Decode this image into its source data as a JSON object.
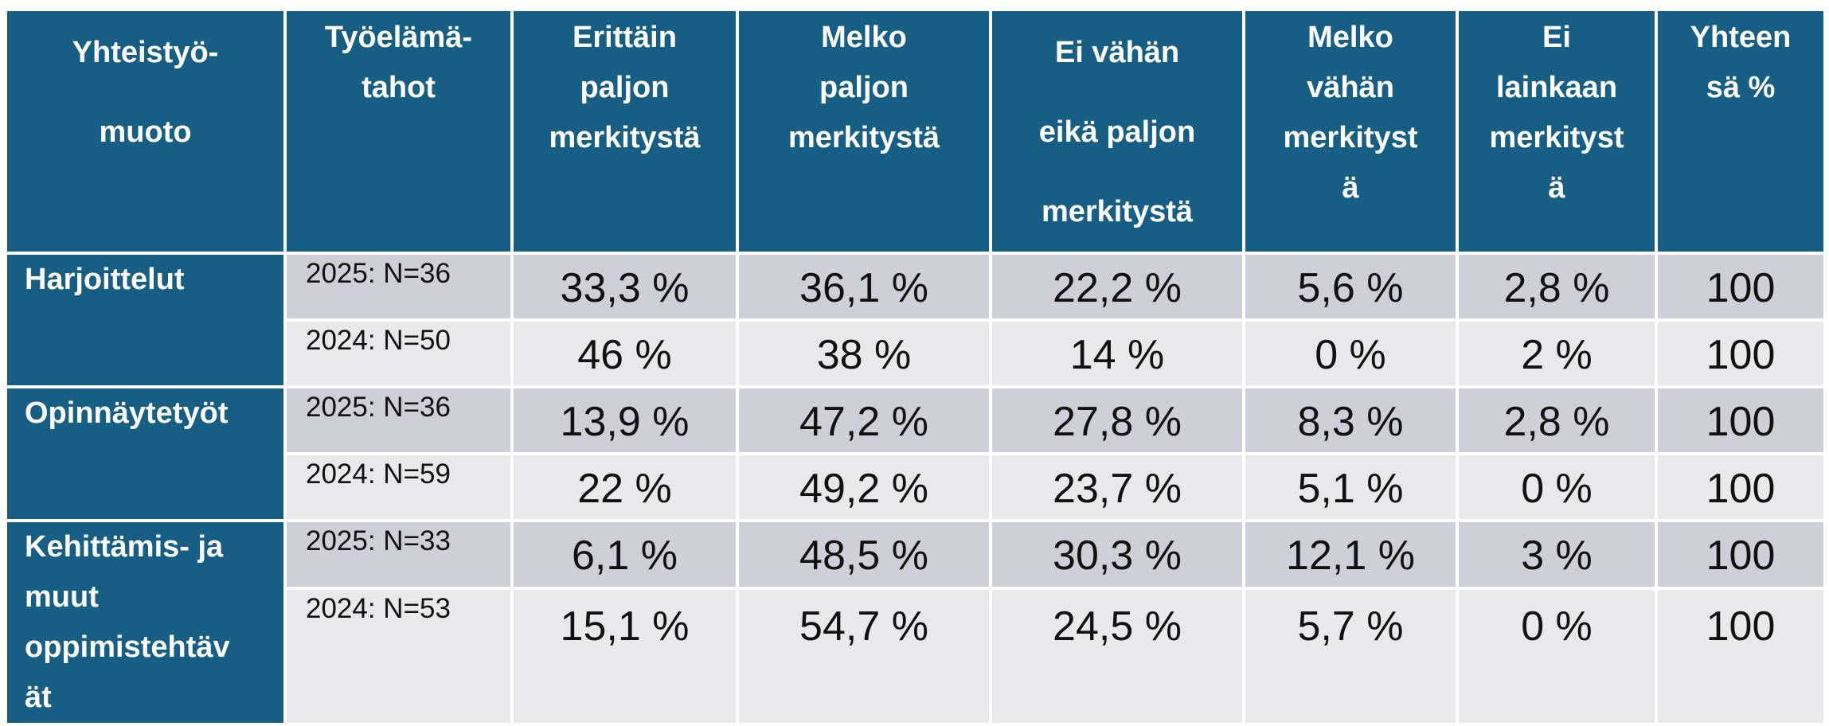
{
  "columns": [
    "Yhteistyö-\nmuoto",
    "Työelämä-\ntahot",
    "Erittäin\npaljon\nmerkitystä",
    "Melko\npaljon\nmerkitystä",
    "Ei vähän\neikä paljon\nmerkitystä",
    "Melko\nvähän\nmerkityst\nä",
    "Ei\nlainkaan\nmerkityst\nä",
    "Yhteen\nsä %"
  ],
  "groups": [
    {
      "name": "Harjoittelut",
      "rows": [
        {
          "year": "2025: N=36",
          "values": [
            "33,3 %",
            "36,1 %",
            "22,2 %",
            "5,6 %",
            "2,8 %",
            "100"
          ]
        },
        {
          "year": "2024: N=50",
          "values": [
            "46 %",
            "38 %",
            "14 %",
            "0 %",
            "2 %",
            "100"
          ]
        }
      ]
    },
    {
      "name": "Opinnäytetyöt",
      "rows": [
        {
          "year": "2025: N=36",
          "values": [
            "13,9 %",
            "47,2 %",
            "27,8 %",
            "8,3 %",
            "2,8 %",
            "100"
          ]
        },
        {
          "year": "2024: N=59",
          "values": [
            "22 %",
            "49,2 %",
            "23,7 %",
            "5,1 %",
            "0 %",
            "100"
          ]
        }
      ]
    },
    {
      "name": "Kehittämis- ja\nmuut\noppimistehtäv\nät",
      "rows": [
        {
          "year": "2025: N=33",
          "values": [
            "6,1 %",
            "48,5 %",
            "30,3 %",
            "12,1 %",
            "3 %",
            "100"
          ]
        },
        {
          "year": "2024: N=53",
          "values": [
            "15,1 %",
            "54,7 %",
            "24,5 %",
            "5,7 %",
            "0 %",
            "100"
          ]
        }
      ]
    }
  ]
}
